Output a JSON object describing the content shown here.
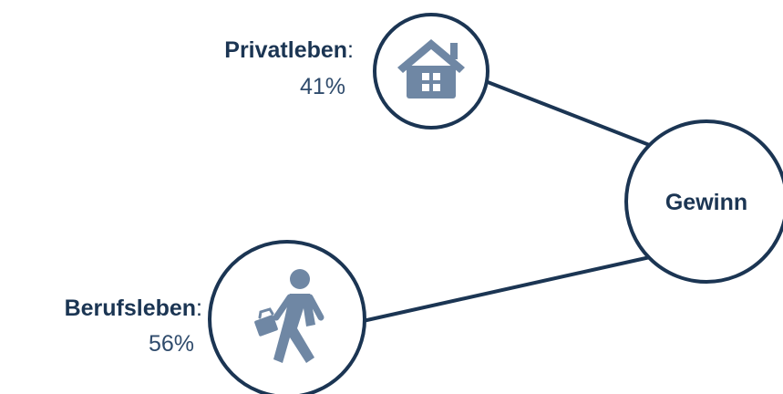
{
  "nodes": [
    {
      "label": "Privatleben",
      "label_suffix": ":",
      "value": "41%"
    },
    {
      "label": "Gewinn"
    },
    {
      "label": "Berufsleben",
      "label_suffix": ":",
      "value": "56%"
    }
  ]
}
